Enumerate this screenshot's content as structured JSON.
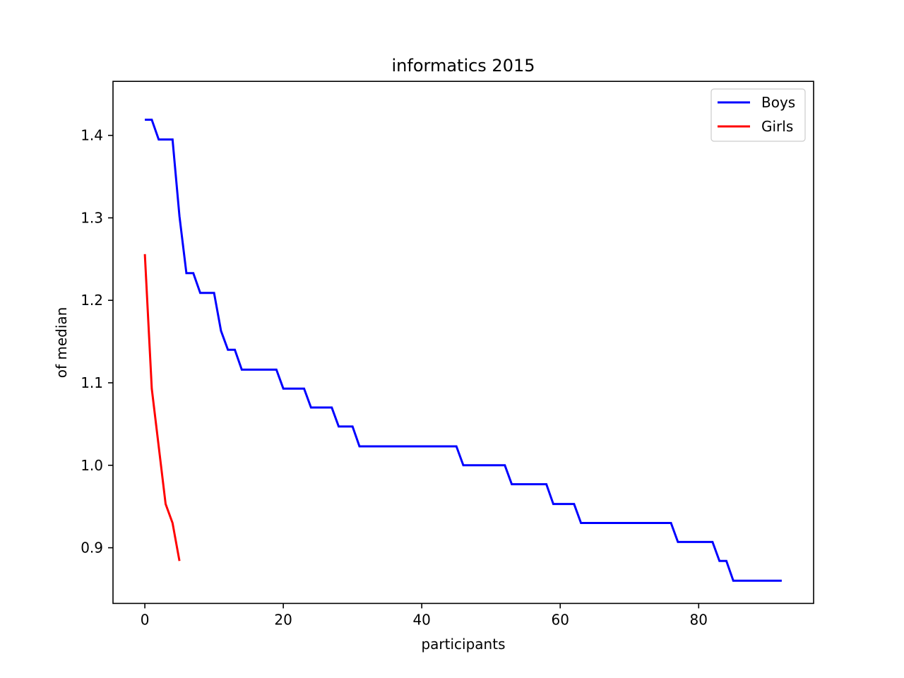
{
  "chart_data": {
    "type": "line",
    "title": "informatics 2015",
    "xlabel": "participants",
    "ylabel": "of median",
    "xlim": [
      -4.6,
      96.6
    ],
    "ylim": [
      0.8325,
      1.4655
    ],
    "xticks": [
      0,
      20,
      40,
      60,
      80
    ],
    "yticks": [
      0.9,
      1.0,
      1.1,
      1.2,
      1.3,
      1.4
    ],
    "xtick_labels": [
      "0",
      "20",
      "40",
      "60",
      "80"
    ],
    "ytick_labels": [
      "0.9",
      "1.0",
      "1.1",
      "1.2",
      "1.3",
      "1.4"
    ],
    "grid": false,
    "legend_position": "upper right",
    "series": [
      {
        "name": "Boys",
        "color": "#0000ff",
        "x": [
          0,
          1,
          2,
          3,
          4,
          5,
          6,
          7,
          8,
          9,
          10,
          11,
          12,
          13,
          14,
          15,
          16,
          17,
          18,
          19,
          20,
          21,
          22,
          23,
          24,
          25,
          26,
          27,
          28,
          29,
          30,
          31,
          32,
          33,
          34,
          35,
          36,
          37,
          38,
          39,
          40,
          41,
          42,
          43,
          44,
          45,
          46,
          47,
          48,
          49,
          50,
          51,
          52,
          53,
          54,
          55,
          56,
          57,
          58,
          59,
          60,
          61,
          62,
          63,
          64,
          65,
          66,
          67,
          68,
          69,
          70,
          71,
          72,
          73,
          74,
          75,
          76,
          77,
          78,
          79,
          80,
          81,
          82,
          83,
          84,
          85,
          86,
          87,
          88,
          89,
          90,
          91,
          92
        ],
        "values": [
          1.419,
          1.419,
          1.395,
          1.395,
          1.395,
          1.302,
          1.233,
          1.233,
          1.209,
          1.209,
          1.209,
          1.163,
          1.14,
          1.14,
          1.116,
          1.116,
          1.116,
          1.116,
          1.116,
          1.116,
          1.093,
          1.093,
          1.093,
          1.093,
          1.07,
          1.07,
          1.07,
          1.07,
          1.047,
          1.047,
          1.047,
          1.023,
          1.023,
          1.023,
          1.023,
          1.023,
          1.023,
          1.023,
          1.023,
          1.023,
          1.023,
          1.023,
          1.023,
          1.023,
          1.023,
          1.023,
          1.0,
          1.0,
          1.0,
          1.0,
          1.0,
          1.0,
          1.0,
          0.977,
          0.977,
          0.977,
          0.977,
          0.977,
          0.977,
          0.953,
          0.953,
          0.953,
          0.953,
          0.93,
          0.93,
          0.93,
          0.93,
          0.93,
          0.93,
          0.93,
          0.93,
          0.93,
          0.93,
          0.93,
          0.93,
          0.93,
          0.93,
          0.907,
          0.907,
          0.907,
          0.907,
          0.907,
          0.907,
          0.884,
          0.884,
          0.86,
          0.86,
          0.86,
          0.86,
          0.86,
          0.86,
          0.86,
          0.86
        ]
      },
      {
        "name": "Girls",
        "color": "#ff0000",
        "x": [
          0,
          1,
          2,
          3,
          4,
          5
        ],
        "values": [
          1.256,
          1.093,
          1.023,
          0.953,
          0.93,
          0.884
        ]
      }
    ]
  }
}
